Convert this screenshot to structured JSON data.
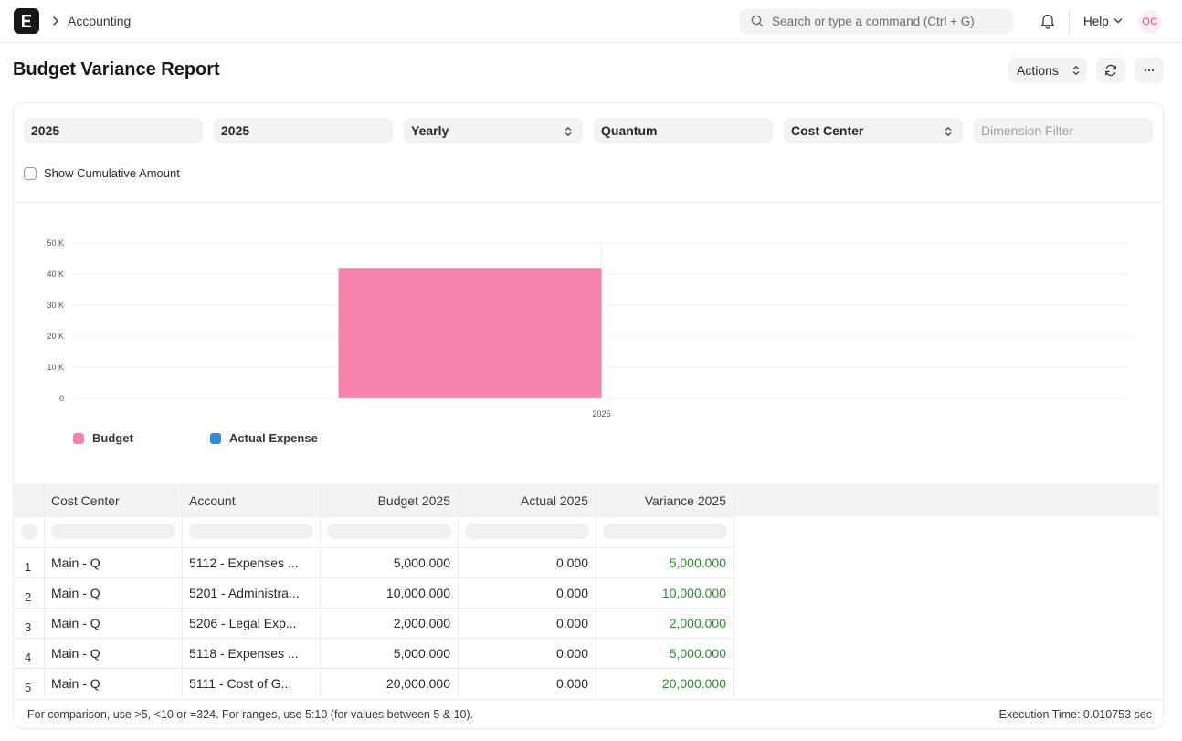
{
  "navbar": {
    "breadcrumb": "Accounting",
    "search_placeholder": "Search or type a command (Ctrl + G)",
    "help_label": "Help",
    "avatar_initials": "OC"
  },
  "page": {
    "title": "Budget Variance Report",
    "actions_label": "Actions"
  },
  "filters": [
    {
      "value": "2025",
      "placeholder": false,
      "select": false
    },
    {
      "value": "2025",
      "placeholder": false,
      "select": false
    },
    {
      "value": "Yearly",
      "placeholder": false,
      "select": true
    },
    {
      "value": "Quantum",
      "placeholder": false,
      "select": false
    },
    {
      "value": "Cost Center",
      "placeholder": false,
      "select": true
    },
    {
      "value": "Dimension Filter",
      "placeholder": true,
      "select": false
    }
  ],
  "cumulative_label": "Show Cumulative Amount",
  "chart_data": {
    "type": "bar",
    "categories": [
      "2025"
    ],
    "series": [
      {
        "name": "Budget",
        "values": [
          42000
        ],
        "color": "#f683ae"
      },
      {
        "name": "Actual Expense",
        "values": [
          0
        ],
        "color": "#318ad8"
      }
    ],
    "y_ticks": [
      "0",
      "10 K",
      "20 K",
      "30 K",
      "40 K",
      "50 K"
    ],
    "ylim": [
      0,
      50000
    ],
    "legend": "bottom-left",
    "grid": true
  },
  "table": {
    "columns": [
      "Cost Center",
      "Account",
      "Budget 2025",
      "Actual 2025",
      "Variance 2025"
    ],
    "rows": [
      {
        "index": "1",
        "cost_center": "Main - Q",
        "account": "5112 - Expenses ...",
        "budget": "5,000.000",
        "actual": "0.000",
        "variance": "5,000.000"
      },
      {
        "index": "2",
        "cost_center": "Main - Q",
        "account": "5201 - Administra...",
        "budget": "10,000.000",
        "actual": "0.000",
        "variance": "10,000.000"
      },
      {
        "index": "3",
        "cost_center": "Main - Q",
        "account": "5206 - Legal Exp...",
        "budget": "2,000.000",
        "actual": "0.000",
        "variance": "2,000.000"
      },
      {
        "index": "4",
        "cost_center": "Main - Q",
        "account": "5118 - Expenses ...",
        "budget": "5,000.000",
        "actual": "0.000",
        "variance": "5,000.000"
      },
      {
        "index": "5",
        "cost_center": "Main - Q",
        "account": "5111 - Cost of G...",
        "budget": "20,000.000",
        "actual": "0.000",
        "variance": "20,000.000"
      }
    ]
  },
  "footer": {
    "hint": "For comparison, use >5, <10 or =324. For ranges, use 5:10 (for values between 5 & 10).",
    "execution_time": "Execution Time: 0.010753 sec"
  },
  "icons": {
    "logo": "erpnext-logo-icon",
    "search": "search-icon",
    "notifications": "bell-icon",
    "refresh": "refresh-icon",
    "more": "more-icon"
  }
}
